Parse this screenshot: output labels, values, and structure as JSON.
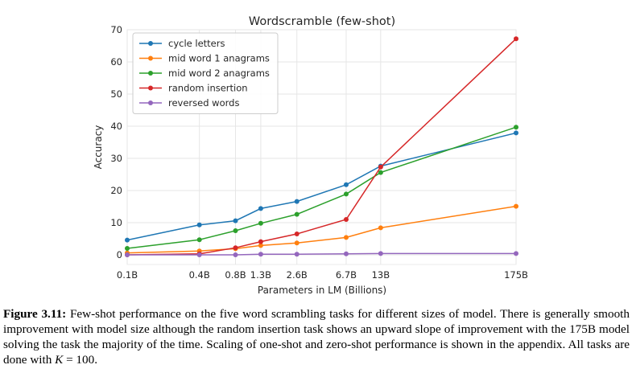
{
  "chart_data": {
    "type": "line",
    "title": "Wordscramble (few-shot)",
    "xlabel": "Parameters in LM (Billions)",
    "ylabel": "Accuracy",
    "x_scale": "log",
    "x_values": [
      0.1,
      0.4,
      0.8,
      1.3,
      2.6,
      6.7,
      13,
      175
    ],
    "x_tick_labels": [
      "0.1B",
      "0.4B",
      "0.8B",
      "1.3B",
      "2.6B",
      "6.7B",
      "13B",
      "175B"
    ],
    "ylim": [
      -3,
      70
    ],
    "y_ticks": [
      0,
      10,
      20,
      30,
      40,
      50,
      60,
      70
    ],
    "grid": true,
    "legend_position": "top-left",
    "series": [
      {
        "name": "cycle letters",
        "color": "#1f77b4",
        "values": [
          4.6,
          9.3,
          10.6,
          14.4,
          16.6,
          21.8,
          27.6,
          37.9
        ]
      },
      {
        "name": "mid word 1 anagrams",
        "color": "#ff7f0e",
        "values": [
          0.6,
          1.2,
          1.9,
          2.9,
          3.7,
          5.4,
          8.4,
          15.1
        ]
      },
      {
        "name": "mid word 2 anagrams",
        "color": "#2ca02c",
        "values": [
          2.0,
          4.7,
          7.5,
          9.8,
          12.6,
          18.9,
          25.6,
          39.7
        ]
      },
      {
        "name": "random insertion",
        "color": "#d62728",
        "values": [
          0.0,
          0.3,
          2.2,
          4.1,
          6.5,
          11.0,
          27.3,
          67.2
        ]
      },
      {
        "name": "reversed words",
        "color": "#9467bd",
        "values": [
          0.0,
          0.0,
          0.0,
          0.2,
          0.2,
          0.3,
          0.4,
          0.4
        ]
      }
    ]
  },
  "caption": {
    "label": "Figure 3.11:",
    "text_before_k": " Few-shot performance on the five word scrambling tasks for different sizes of model. There is generally smooth improvement with model size although the random insertion task shows an upward slope of improvement with the 175B model solving the task the majority of the time. Scaling of one-shot and zero-shot performance is shown in the appendix. All tasks are done with ",
    "k_symbol": "K",
    "text_after_k": " = 100."
  }
}
